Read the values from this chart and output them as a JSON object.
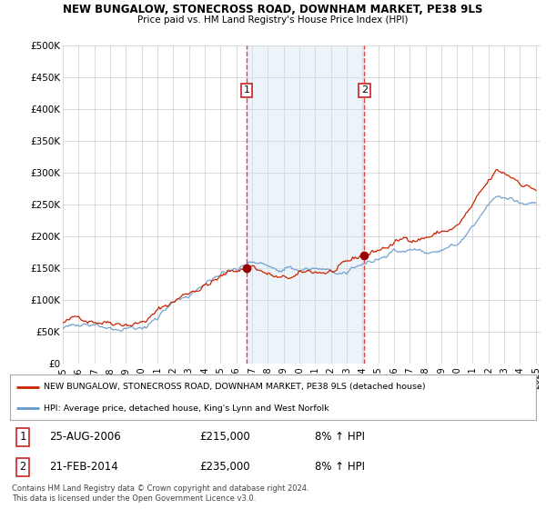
{
  "title": "NEW BUNGALOW, STONECROSS ROAD, DOWNHAM MARKET, PE38 9LS",
  "subtitle": "Price paid vs. HM Land Registry's House Price Index (HPI)",
  "ylabel_ticks": [
    "£0",
    "£50K",
    "£100K",
    "£150K",
    "£200K",
    "£250K",
    "£300K",
    "£350K",
    "£400K",
    "£450K",
    "£500K"
  ],
  "ytick_values": [
    0,
    50000,
    100000,
    150000,
    200000,
    250000,
    300000,
    350000,
    400000,
    450000,
    500000
  ],
  "ylim": [
    0,
    500000
  ],
  "xlim_start": 1995.3,
  "xlim_end": 2025.3,
  "xtick_years": [
    1995,
    1996,
    1997,
    1998,
    1999,
    2000,
    2001,
    2002,
    2003,
    2004,
    2005,
    2006,
    2007,
    2008,
    2009,
    2010,
    2011,
    2012,
    2013,
    2014,
    2015,
    2016,
    2017,
    2018,
    2019,
    2020,
    2021,
    2022,
    2023,
    2024,
    2025
  ],
  "sale1_x": 2006.65,
  "sale1_y": 215000,
  "sale1_label": "1",
  "sale2_x": 2014.12,
  "sale2_y": 235000,
  "sale2_label": "2",
  "line_red_color": "#cc2200",
  "line_blue_color": "#6699cc",
  "vline_color": "#dd4444",
  "shade_color": "#cce0f0",
  "dot_color": "#990000",
  "plot_bg_color": "#ffffff",
  "legend_line1": "NEW BUNGALOW, STONECROSS ROAD, DOWNHAM MARKET, PE38 9LS (detached house)",
  "legend_line2": "HPI: Average price, detached house, King's Lynn and West Norfolk",
  "table_row1": [
    "1",
    "25-AUG-2006",
    "£215,000",
    "8% ↑ HPI"
  ],
  "table_row2": [
    "2",
    "21-FEB-2014",
    "£235,000",
    "8% ↑ HPI"
  ],
  "footer": "Contains HM Land Registry data © Crown copyright and database right 2024.\nThis data is licensed under the Open Government Licence v3.0."
}
